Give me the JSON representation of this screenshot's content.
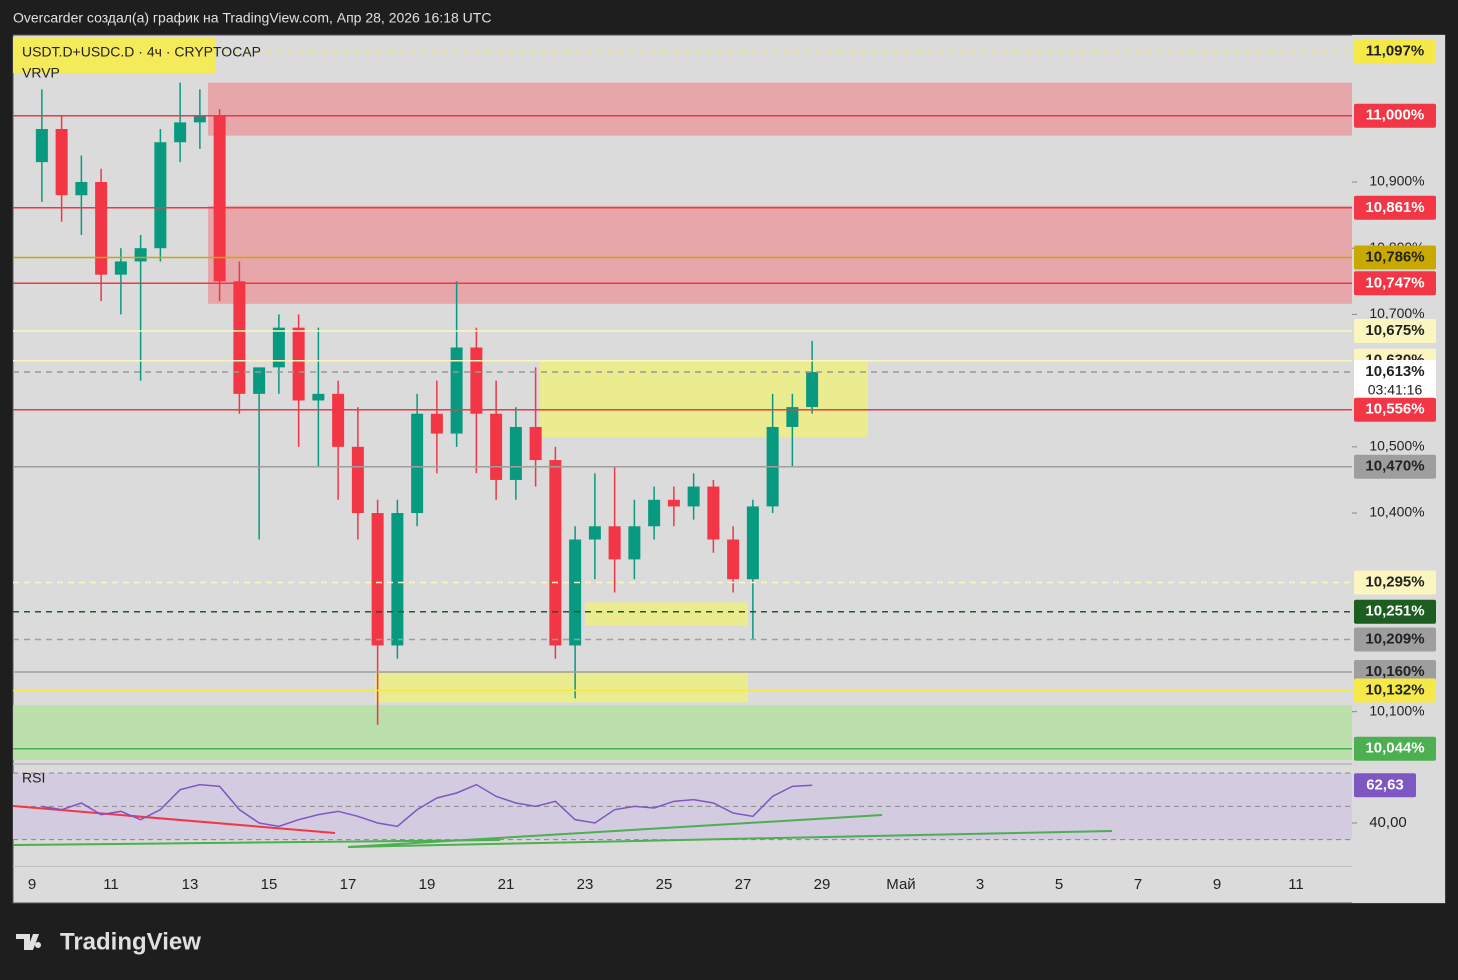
{
  "header": "Overcarder создал(а) график на TradingView.com, Апр 28, 2026 16:18 UTC",
  "brand": "TradingView",
  "chart_data": [
    {
      "type": "candlestick",
      "title": "USDT.D+USDC.D · 4ч · CRYPTOCAP",
      "indicator": "VRVP",
      "up_color": "#089981",
      "down_color": "#f23645",
      "open": [
        10.93,
        10.98,
        10.88,
        10.9,
        10.76,
        10.78,
        10.8,
        10.96,
        10.99,
        11.0,
        10.75,
        10.58,
        10.62,
        10.68,
        10.57,
        10.58,
        10.5,
        10.4,
        10.2,
        10.4,
        10.55,
        10.52,
        10.65,
        10.55,
        10.45,
        10.53,
        10.48,
        10.2,
        10.36,
        10.38,
        10.33,
        10.38,
        10.42,
        10.41,
        10.44,
        10.36,
        10.3,
        10.41,
        10.53,
        10.56
      ],
      "high": [
        11.04,
        11.0,
        10.94,
        10.92,
        10.8,
        10.82,
        10.98,
        11.05,
        11.04,
        11.01,
        10.78,
        10.62,
        10.7,
        10.7,
        10.68,
        10.6,
        10.56,
        10.42,
        10.42,
        10.58,
        10.6,
        10.75,
        10.68,
        10.6,
        10.56,
        10.62,
        10.5,
        10.38,
        10.46,
        10.47,
        10.42,
        10.44,
        10.44,
        10.46,
        10.45,
        10.38,
        10.42,
        10.58,
        10.58,
        10.66
      ],
      "low": [
        10.87,
        10.84,
        10.82,
        10.72,
        10.7,
        10.6,
        10.78,
        10.93,
        10.95,
        10.72,
        10.55,
        10.36,
        10.58,
        10.5,
        10.47,
        10.42,
        10.36,
        10.08,
        10.18,
        10.38,
        10.46,
        10.5,
        10.46,
        10.42,
        10.42,
        10.44,
        10.18,
        10.12,
        10.3,
        10.28,
        10.3,
        10.36,
        10.38,
        10.39,
        10.34,
        10.28,
        10.21,
        10.4,
        10.47,
        10.55
      ],
      "close": [
        10.98,
        10.88,
        10.9,
        10.76,
        10.78,
        10.8,
        10.96,
        10.99,
        11.0,
        10.75,
        10.58,
        10.62,
        10.68,
        10.57,
        10.58,
        10.5,
        10.4,
        10.2,
        10.4,
        10.55,
        10.52,
        10.65,
        10.55,
        10.45,
        10.53,
        10.48,
        10.2,
        10.36,
        10.38,
        10.33,
        10.38,
        10.42,
        10.41,
        10.44,
        10.36,
        10.3,
        10.41,
        10.53,
        10.56,
        10.613
      ],
      "ylim": [
        10.027,
        11.122
      ],
      "yticks": [
        {
          "value": 10.9,
          "label": "10,900%"
        },
        {
          "value": 10.8,
          "label": "10,800%"
        },
        {
          "value": 10.7,
          "label": "10,700%"
        },
        {
          "value": 10.5,
          "label": "10,500%"
        },
        {
          "value": 10.4,
          "label": "10,400%"
        },
        {
          "value": 10.1,
          "label": "10,100%"
        }
      ],
      "xticks": [
        "9",
        "11",
        "13",
        "15",
        "17",
        "19",
        "21",
        "23",
        "25",
        "27",
        "29",
        "Май",
        "3",
        "5",
        "7",
        "9",
        "11"
      ],
      "zones": [
        {
          "range": [
            10.97,
            11.05
          ],
          "color": "#e8a0a4"
        },
        {
          "range": [
            10.716,
            10.864
          ],
          "color": "#e8a0a4"
        },
        {
          "range": [
            10.515,
            10.63
          ],
          "color": "#ecec86"
        },
        {
          "range": [
            10.23,
            10.265
          ],
          "color": "#ecec86"
        },
        {
          "range": [
            10.114,
            10.161
          ],
          "color": "#ecec86"
        },
        {
          "range": [
            10.027,
            10.11
          ],
          "color": "#b7e0a6"
        }
      ],
      "levels": [
        {
          "value": 11.097,
          "label": "11,097%",
          "color": "#f5e94a",
          "text_color": "#222",
          "dashed": true
        },
        {
          "value": 11.0,
          "label": "11,000%",
          "color": "#f23645",
          "text_color": "#fff",
          "dashed": false
        },
        {
          "value": 10.861,
          "label": "10,861%",
          "color": "#f23645",
          "text_color": "#fff",
          "dashed": false
        },
        {
          "value": 10.786,
          "label": "10,786%",
          "color": "#c9a800",
          "text_color": "#222",
          "dashed": false
        },
        {
          "value": 10.747,
          "label": "10,747%",
          "color": "#f23645",
          "text_color": "#fff",
          "dashed": false
        },
        {
          "value": 10.675,
          "label": "10,675%",
          "color": "#fbf6c0",
          "text_color": "#222",
          "dashed": false
        },
        {
          "value": 10.63,
          "label": "10,630%",
          "color": "#fbf6c0",
          "text_color": "#222",
          "dashed": false
        },
        {
          "value": 10.613,
          "label": "10,613%",
          "color": "#ffffff",
          "text_color": "#222",
          "dashed": true,
          "countdown": "03:41:16"
        },
        {
          "value": 10.556,
          "label": "10,556%",
          "color": "#f23645",
          "text_color": "#fff",
          "dashed": false
        },
        {
          "value": 10.47,
          "label": "10,470%",
          "color": "#9e9e9e",
          "text_color": "#222",
          "dashed": false
        },
        {
          "value": 10.295,
          "label": "10,295%",
          "color": "#fbf6c0",
          "text_color": "#222",
          "dashed": true
        },
        {
          "value": 10.251,
          "label": "10,251%",
          "color": "#1b5e20",
          "text_color": "#fff",
          "dashed": true
        },
        {
          "value": 10.209,
          "label": "10,209%",
          "color": "#9e9e9e",
          "text_color": "#222",
          "dashed": true
        },
        {
          "value": 10.16,
          "label": "10,160%",
          "color": "#9e9e9e",
          "text_color": "#222",
          "dashed": false
        },
        {
          "value": 10.132,
          "label": "10,132%",
          "color": "#f5e94a",
          "text_color": "#222",
          "dashed": false
        },
        {
          "value": 10.044,
          "label": "10,044%",
          "color": "#4caf50",
          "text_color": "#fff",
          "dashed": false
        }
      ]
    },
    {
      "type": "line",
      "title": "RSI",
      "color": "#7e57c2",
      "values": [
        50,
        48,
        52,
        45,
        47,
        42,
        48,
        60,
        63,
        62,
        48,
        40,
        38,
        42,
        45,
        47,
        44,
        40,
        38,
        48,
        55,
        58,
        63,
        56,
        52,
        50,
        53,
        42,
        40,
        48,
        50,
        49,
        53,
        54,
        52,
        46,
        44,
        56,
        62,
        62.63
      ],
      "value_labels": [
        null,
        null,
        null,
        null,
        null,
        null,
        null,
        null,
        null,
        null,
        null,
        null,
        null,
        null,
        null,
        null,
        null,
        null,
        null,
        null,
        null,
        null,
        null,
        null,
        null,
        null,
        null,
        null,
        null,
        null,
        null,
        null,
        null,
        null,
        null,
        null,
        null,
        null,
        null,
        "62,63"
      ],
      "ylim": [
        23.8,
        74.8
      ],
      "yticks": [
        {
          "value": 40,
          "label": "40,00"
        }
      ],
      "bands": [
        30,
        50,
        70
      ]
    }
  ]
}
